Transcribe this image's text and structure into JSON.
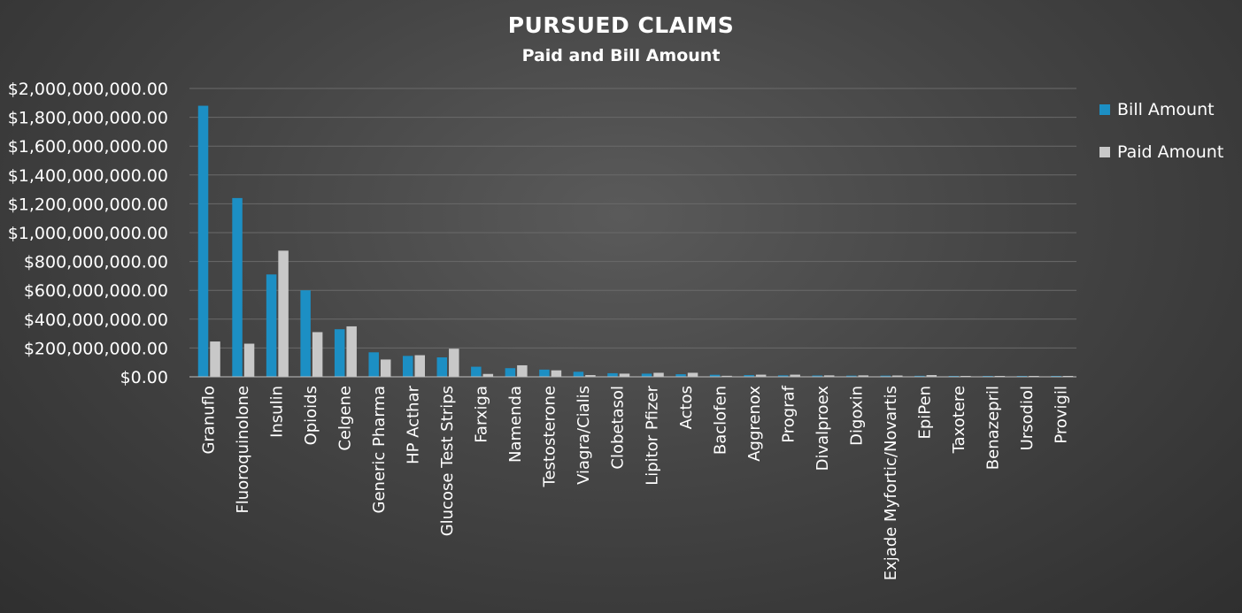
{
  "chart_data": {
    "type": "bar",
    "title": "PURSUED CLAIMS",
    "subtitle": "Paid and Bill Amount",
    "xlabel": "",
    "ylabel": "",
    "ylim": [
      0,
      2000000000
    ],
    "yticks": [
      {
        "value": 0,
        "label": "$0.00"
      },
      {
        "value": 200000000,
        "label": "$200,000,000.00"
      },
      {
        "value": 400000000,
        "label": "$400,000,000.00"
      },
      {
        "value": 600000000,
        "label": "$600,000,000.00"
      },
      {
        "value": 800000000,
        "label": "$800,000,000.00"
      },
      {
        "value": 1000000000,
        "label": "$1,000,000,000.00"
      },
      {
        "value": 1200000000,
        "label": "$1,200,000,000.00"
      },
      {
        "value": 1400000000,
        "label": "$1,400,000,000.00"
      },
      {
        "value": 1600000000,
        "label": "$1,600,000,000.00"
      },
      {
        "value": 1800000000,
        "label": "$1,800,000,000.00"
      },
      {
        "value": 2000000000,
        "label": "$2,000,000,000.00"
      }
    ],
    "grid": true,
    "legend_position": "right",
    "categories": [
      "Granuflo",
      "Fluoroquinolone",
      "Insulin",
      "Opioids",
      "Celgene",
      "Generic Pharma",
      "HP Acthar",
      "Glucose Test Strips",
      "Farxiga",
      "Namenda",
      "Testosterone",
      "Viagra/Cialis",
      "Clobetasol",
      "Lipitor Pfizer",
      "Actos",
      "Baclofen",
      "Aggrenox",
      "Prograf",
      "Divalproex",
      "Digoxin",
      "Exjade Myfortic/Novartis",
      "EpiPen",
      "Taxotere",
      "Benazepril",
      "Ursodiol",
      "Provigil"
    ],
    "series": [
      {
        "name": "Bill Amount",
        "color": "#1c8fc4",
        "values": [
          1880000000,
          1240000000,
          710000000,
          600000000,
          330000000,
          170000000,
          145000000,
          135000000,
          70000000,
          60000000,
          50000000,
          35000000,
          25000000,
          22000000,
          18000000,
          14000000,
          12000000,
          10000000,
          9000000,
          8000000,
          8000000,
          7000000,
          6000000,
          5000000,
          4000000,
          3000000
        ]
      },
      {
        "name": "Paid Amount",
        "color": "#c8c8c8",
        "values": [
          245000000,
          230000000,
          875000000,
          310000000,
          350000000,
          120000000,
          150000000,
          195000000,
          20000000,
          80000000,
          45000000,
          12000000,
          22000000,
          28000000,
          28000000,
          7000000,
          15000000,
          15000000,
          10000000,
          10000000,
          9000000,
          12000000,
          5000000,
          4000000,
          4000000,
          3000000
        ]
      }
    ]
  }
}
